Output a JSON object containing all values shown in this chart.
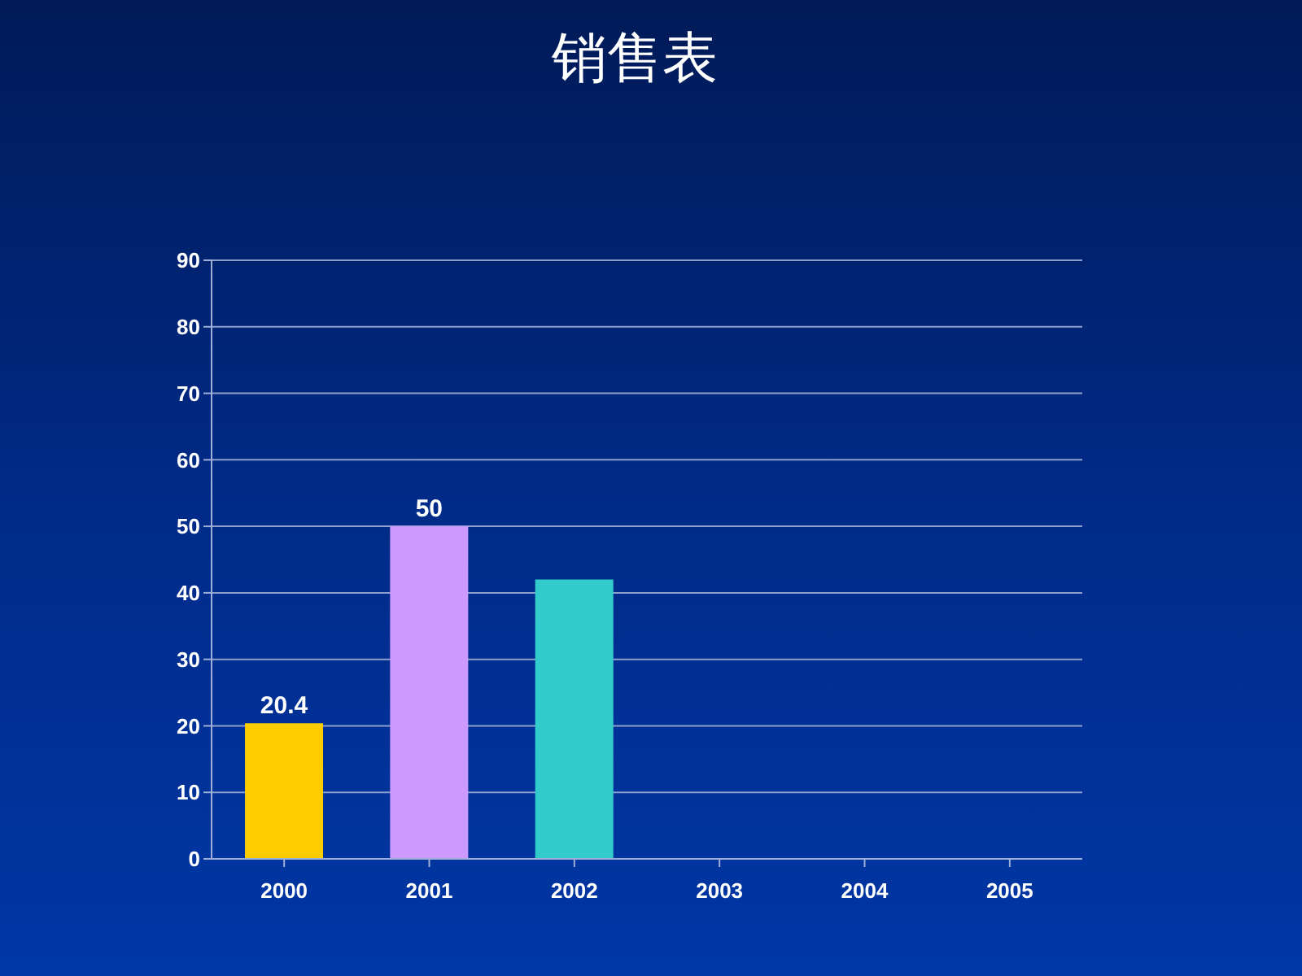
{
  "chart_data": {
    "type": "bar",
    "title": "销售表",
    "categories": [
      "2000",
      "2001",
      "2002",
      "2003",
      "2004",
      "2005"
    ],
    "values": [
      20.4,
      50,
      42,
      null,
      null,
      null
    ],
    "colors": [
      "#ffcc00",
      "#cc99ff",
      "#33cccc",
      null,
      null,
      null
    ],
    "value_labels": [
      "20.4",
      "50",
      null,
      null,
      null,
      null
    ],
    "ylim": [
      0,
      90
    ],
    "yticks": [
      0,
      10,
      20,
      30,
      40,
      50,
      60,
      70,
      80,
      90
    ],
    "grid": "y"
  }
}
